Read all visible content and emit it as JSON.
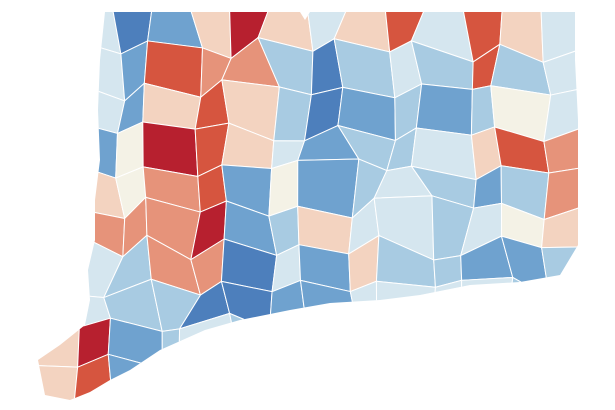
{
  "map": {
    "fill_colors": [
      [
        "#d5e6ef",
        "#d5e6ef",
        "#4d7fbc",
        "#6fa2cf",
        "#f3d3c0",
        "#b7202f",
        "#f3d3c0",
        "#d5e6ef",
        "#f3d3c0",
        "#d6553f",
        "#d5e6ef",
        "#d6553f",
        "#f3d3c0",
        "#d5e6ef"
      ],
      [
        "#d5e6ef",
        "#d5e6ef",
        "#6fa2cf",
        "#d6553f",
        "#e6937a",
        "#e6937a",
        "#a8cbe2",
        "#4d7fbc",
        "#a8cbe2",
        "#d5e6ef",
        "#a8cbe2",
        "#d6553f",
        "#a8cbe2",
        "#d5e6ef"
      ],
      [
        "#d5e6ef",
        "#d5e6ef",
        "#6fa2cf",
        "#f3d3c0",
        "#d6553f",
        "#f3d3c0",
        "#a8cbe2",
        "#4d7fbc",
        "#6fa2cf",
        "#a8cbe2",
        "#6fa2cf",
        "#a8cbe2",
        "#f4f2e6",
        "#d5e6ef"
      ],
      [
        "#d5e6ef",
        "#6fa2cf",
        "#f4f2e6",
        "#b7202f",
        "#d6553f",
        "#f3d3c0",
        "#d5e6ef",
        "#6fa2cf",
        "#a8cbe2",
        "#a8cbe2",
        "#d5e6ef",
        "#f3d3c0",
        "#d6553f",
        "#e6937a"
      ],
      [
        "#d5e6ef",
        "#f3d3c0",
        "#f4f2e6",
        "#e6937a",
        "#d6553f",
        "#6fa2cf",
        "#f4f2e6",
        "#6fa2cf",
        "#a8cbe2",
        "#d5e6ef",
        "#a8cbe2",
        "#6fa2cf",
        "#a8cbe2",
        "#e6937a"
      ],
      [
        "#d5e6ef",
        "#e6937a",
        "#e6937a",
        "#e6937a",
        "#b7202f",
        "#6fa2cf",
        "#a8cbe2",
        "#f3d3c0",
        "#d5e6ef",
        "#d5e6ef",
        "#a8cbe2",
        "#d5e6ef",
        "#f4f2e6",
        "#f3d3c0"
      ],
      [
        "#d5e6ef",
        "#d5e6ef",
        "#a8cbe2",
        "#e6937a",
        "#e6937a",
        "#4d7fbc",
        "#d5e6ef",
        "#6fa2cf",
        "#f3d3c0",
        "#a8cbe2",
        "#a8cbe2",
        "#6fa2cf",
        "#6fa2cf",
        "#a8cbe2"
      ],
      [
        "#d5e6ef",
        "#d5e6ef",
        "#a8cbe2",
        "#a8cbe2",
        "#4d7fbc",
        "#4d7fbc",
        "#6fa2cf",
        "#6fa2cf",
        "#d5e6ef",
        "#d5e6ef",
        "#d5e6ef",
        "#d5e6ef",
        "#a8cbe2",
        "#a8cbe2"
      ],
      [
        "#f3d3c0",
        "#b7202f",
        "#6fa2cf",
        "#a8cbe2",
        "#d5e6ef",
        "#a8cbe2",
        "#a8cbe2",
        "#a8cbe2",
        "#d5e6ef",
        "#d5e6ef",
        "#d5e6ef",
        "#d5e6ef",
        "#d5e6ef",
        "#d5e6ef"
      ],
      [
        "#f3d3c0",
        "#d6553f",
        "#6fa2cf",
        "#a8cbe2",
        "#d5e6ef",
        "#d5e6ef",
        "#d5e6ef",
        "#d5e6ef",
        "#d5e6ef",
        "#d5e6ef",
        "#d5e6ef",
        "#d5e6ef",
        "#d5e6ef",
        "#d5e6ef"
      ]
    ]
  }
}
